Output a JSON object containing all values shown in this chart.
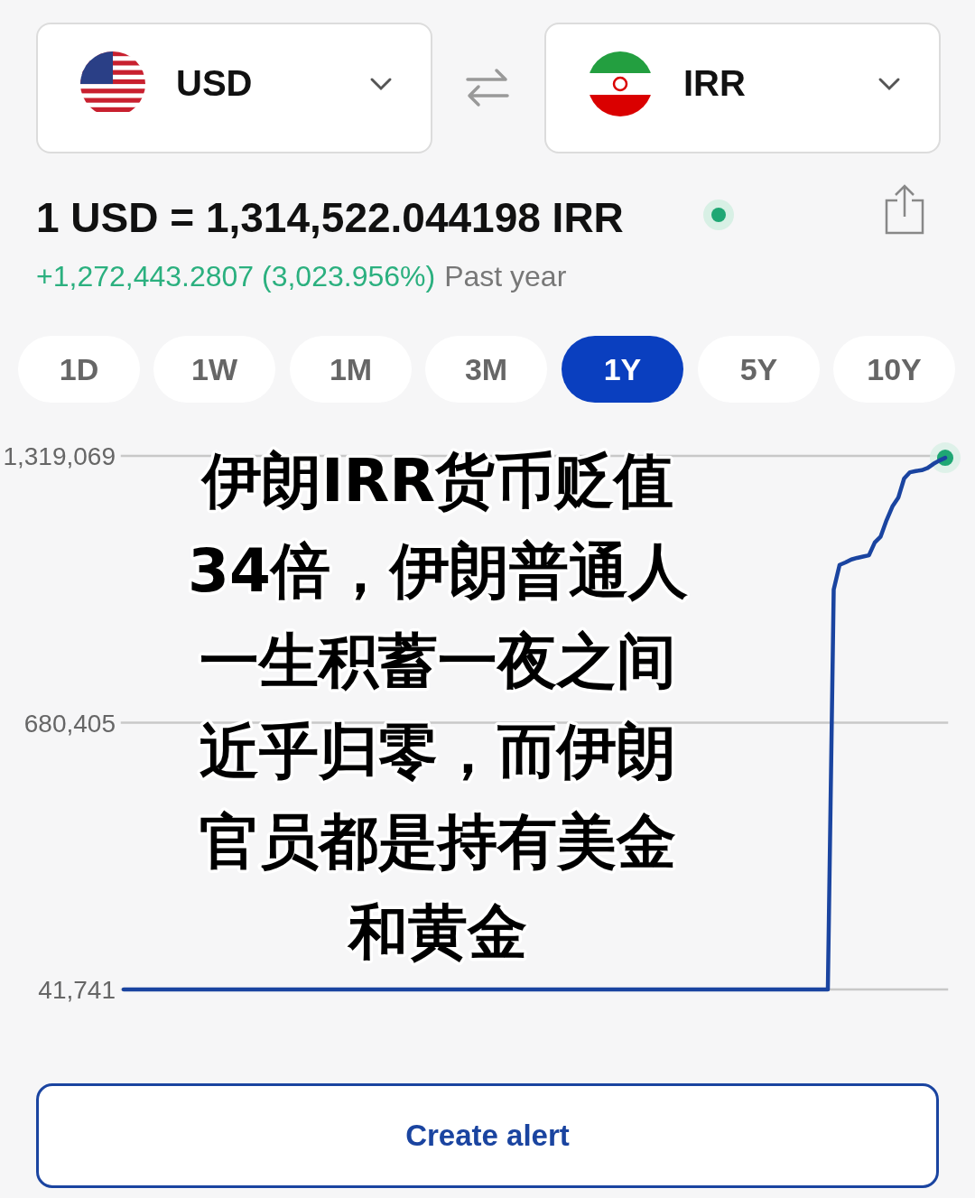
{
  "chart_data": {
    "type": "line",
    "title": "1 USD = 1,314,522.044198 IRR",
    "subtitle": "+1,272,443.2807 (3,023.956%)",
    "annotations": [
      "USD",
      "IRR",
      "1D",
      "1W",
      "1M",
      "3M",
      "1Y",
      "5Y",
      "10Y",
      "Past year",
      "伊朗IRR货币贬值34倍，伊朗普通人一生积蓄一夜之间近乎归零，而伊朗官员都是持有美金和黄金",
      "Create alert"
    ],
    "categories": [
      null,
      null,
      null,
      null,
      null,
      null,
      null,
      null,
      null,
      null,
      null,
      null,
      null,
      null,
      null,
      null,
      null,
      null,
      null,
      null,
      null,
      null,
      null,
      null,
      null,
      null,
      null,
      null,
      null,
      null,
      null,
      null,
      null,
      null,
      null,
      null,
      null,
      null,
      null,
      null,
      null,
      null,
      null,
      null,
      null,
      null,
      null,
      null,
      null,
      null,
      null,
      null,
      null,
      null,
      null,
      null,
      null,
      null,
      null,
      null,
      null,
      null,
      null,
      null,
      null,
      null,
      null,
      null,
      null,
      null,
      null,
      null,
      null,
      null,
      null,
      null,
      null,
      null,
      null,
      null,
      null,
      null,
      null,
      null,
      null,
      null,
      null,
      null,
      null,
      null,
      null,
      null,
      null,
      null,
      null,
      null,
      null,
      null,
      null,
      null,
      null,
      null,
      null,
      null,
      null,
      null,
      null,
      null,
      null,
      null,
      null,
      null,
      null,
      null,
      null,
      null,
      null,
      null,
      null,
      null,
      null,
      null,
      null,
      null,
      null,
      null,
      null,
      null,
      null,
      null,
      null,
      null,
      null,
      null,
      null,
      null,
      null,
      null,
      null,
      null,
      null
    ],
    "series": [
      {
        "color": "#1a44a0",
        "values": [
          41741,
          41741,
          41741,
          41741,
          41741,
          41741,
          41741,
          41741,
          41741,
          41741,
          41741,
          41741,
          41741,
          41741,
          41741,
          41741,
          41741,
          41741,
          41741,
          41741,
          41741,
          41741,
          41741,
          41741,
          41741,
          41741,
          41741,
          41741,
          41741,
          41741,
          41741,
          41741,
          41741,
          41741,
          41741,
          41741,
          41741,
          41741,
          41741,
          41741,
          41741,
          41741,
          41741,
          41741,
          41741,
          41741,
          41741,
          41741,
          41741,
          41741,
          41741,
          41741,
          41741,
          41741,
          41741,
          41741,
          41741,
          41741,
          41741,
          41741,
          41741,
          41741,
          41741,
          41741,
          41741,
          41741,
          41741,
          41741,
          41741,
          41741,
          41741,
          41741,
          41741,
          41741,
          41741,
          41741,
          41741,
          41741,
          41741,
          41741,
          41741,
          41741,
          41741,
          41741,
          41741,
          41741,
          41741,
          41741,
          41741,
          41741,
          41741,
          41741,
          41741,
          41741,
          41741,
          41741,
          41741,
          41741,
          41741,
          41741,
          41741,
          41741,
          41741,
          41741,
          41741,
          41741,
          41741,
          41741,
          41741,
          41741,
          41741,
          41741,
          41741,
          41741,
          41741,
          41741,
          41741,
          41741,
          41741,
          41741,
          41741,
          999000,
          1058000,
          1064000,
          1071000,
          1075000,
          1078000,
          1081000,
          1112000,
          1126000,
          1165000,
          1198000,
          1219000,
          1265000,
          1280000,
          1283000,
          1285000,
          1290000,
          1300000,
          1308000,
          1314522
        ]
      }
    ],
    "ylim": [
      41741,
      1319069
    ],
    "yticks": [
      {
        "value": 41741,
        "label": "41,741"
      },
      {
        "value": 680405,
        "label": "680,405"
      },
      {
        "value": 1319069,
        "label": "1,319,069"
      }
    ],
    "grid": "y"
  }
}
